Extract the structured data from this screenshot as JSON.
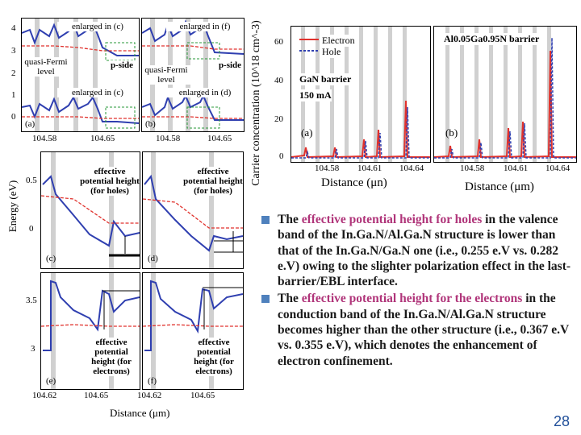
{
  "fig_top": {
    "y_ticks": [
      "4",
      "3",
      "2",
      "1",
      "0"
    ],
    "x_ticks_a": [
      "104.58",
      "104.65"
    ],
    "x_ticks_b": [
      "104.58",
      "104.65"
    ],
    "panel_a_label": "(a)",
    "panel_b_label": "(b)",
    "enl_c_top": "enlarged in (c)",
    "enl_c_bot": "enlarged in (c)",
    "enl_f": "enlarged in (f)",
    "enl_d": "enlarged in (d)",
    "qf_a": "quasi-Fermi level",
    "qf_b": "quasi-Fermi level",
    "pside_a": "p-side",
    "pside_b": "p-side"
  },
  "fig_conc": {
    "ylabel": "Carrier concentration (10^18 cm^-3)",
    "y_ticks": [
      "60",
      "40",
      "20",
      "0"
    ],
    "legend_electron": "Electron",
    "legend_hole": "Hole",
    "gan_barrier": "GaN barrier",
    "current": "150 mA",
    "panel_a": "(a)",
    "panel_b": "(b)",
    "algan_barrier": "Al0.05Ga0.95N barrier",
    "x_ticks_a": [
      "104.58",
      "104.61",
      "104.64"
    ],
    "x_ticks_b": [
      "104.58",
      "104.61",
      "104.64"
    ],
    "xlabel_a": "Distance (μn)",
    "xlabel_b": "Distance (μm)"
  },
  "fig_energy": {
    "ylabel": "Energy (eV)",
    "y_ticks_top": [
      "0.5",
      "0"
    ],
    "y_ticks_bot": [
      "3.5",
      "3"
    ],
    "label_c": "(c)",
    "label_d": "(d)",
    "label_e": "(e)",
    "label_f": "(f)",
    "eph_holes_c": "effective potential height (for holes)",
    "eph_holes_d": "effective potential height (for holes)",
    "eph_e": "effective potential height (for electrons)",
    "eph_f": "effective potential height (for electrons)",
    "x_ticks": [
      "104.62",
      "104.65",
      "104.62",
      "104.65"
    ],
    "xlabel": "Distance (μm)"
  },
  "bullets": [
    {
      "pre": "The ",
      "highlight": "effective potential height for holes",
      "post": " in the valence band of the In.Ga.N/Al.Ga.N structure is lower than that of the In.Ga.N/Ga.N one (i.e., 0.255 e.V vs. 0.282 e.V) owing to the slighter polarization effect in the last-barrier/EBL interface."
    },
    {
      "pre": "The ",
      "highlight": "effective potential height for the electrons",
      "post": " in the conduction band of the In.Ga.N/Al.Ga.N structure becomes higher than the other structure (i.e., 0.367 e.V vs. 0.355 e.V), which denotes the enhancement of electron confinement."
    }
  ],
  "page_number": "28",
  "colors": {
    "electron": "#e0322d",
    "hole": "#2f3fb0",
    "bullet": "#4f81bd",
    "highlight": "#b0357a",
    "page": "#1f4e99"
  }
}
